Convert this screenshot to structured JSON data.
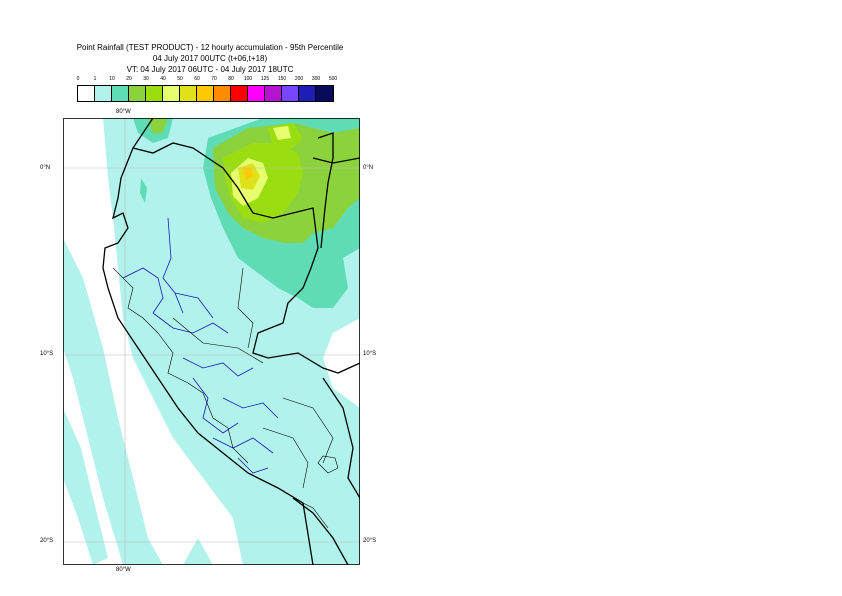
{
  "title": {
    "line1": "Point Rainfall (TEST PRODUCT) - 12 hourly accumulation - 95th Percentile",
    "line2": "04 July 2017 00UTC (t+06,t+18)",
    "line3": "VT: 04 July 2017 06UTC - 04 July 2017 18UTC"
  },
  "legend": {
    "labels": [
      "0",
      "1",
      "10",
      "20",
      "30",
      "40",
      "50",
      "60",
      "70",
      "80",
      "100",
      "125",
      "150",
      "200",
      "300",
      "500"
    ],
    "colors": [
      "#ffffff",
      "#b2f2ec",
      "#5fdcb6",
      "#8cd23c",
      "#9ade12",
      "#e6ff6e",
      "#dfe21a",
      "#ffc800",
      "#ff8c00",
      "#ff0000",
      "#ff00ff",
      "#b414d2",
      "#7846ff",
      "#1e1eb4",
      "#0a0a5a"
    ]
  },
  "map": {
    "lat_labels": [
      "0°N",
      "10°S",
      "20°S"
    ],
    "lon_labels": [
      "80°W",
      "80°W"
    ],
    "colors": {
      "sea_bg": "#ffffff",
      "light_cyan": "#b2f2ec",
      "teal": "#5fdcb6",
      "green": "#8cd23c",
      "bright_green": "#9ade12",
      "lime": "#e6ff6e",
      "yellow": "#dfe21a",
      "orange": "#ffc800",
      "coast": "#000000",
      "admin": "#1a1ab4"
    }
  }
}
